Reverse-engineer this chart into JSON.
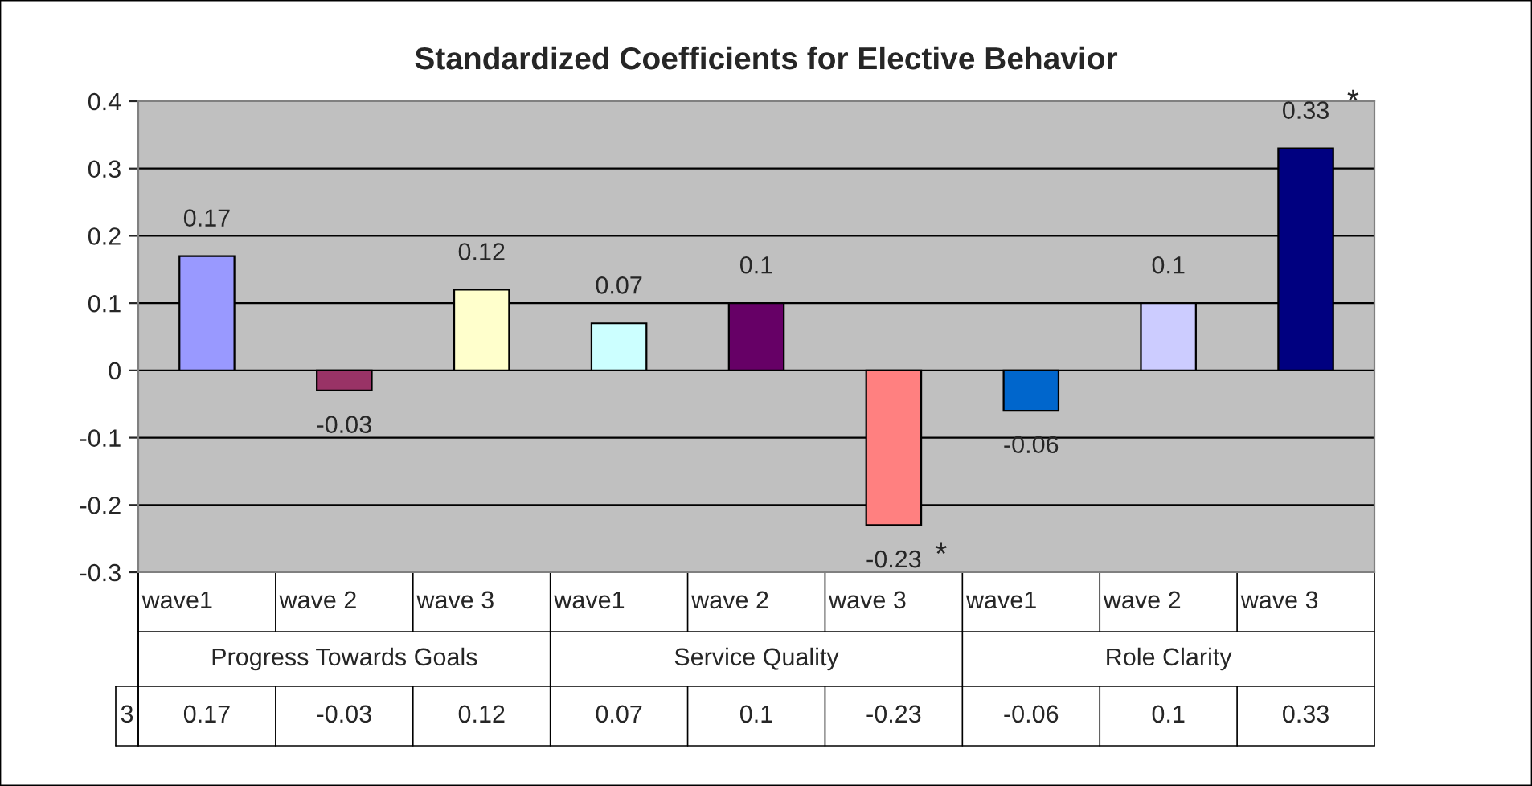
{
  "chart_data": {
    "type": "bar",
    "title": "Standardized Coefficients for Elective Behavior",
    "categories": [
      "wave1",
      "wave 2",
      "wave 3",
      "wave1",
      "wave 2",
      "wave 3",
      "wave1",
      "wave 2",
      "wave 3"
    ],
    "series": [
      {
        "name": "3",
        "colors": [
          "#9999ff",
          "#993366",
          "#ffffcc",
          "#ccffff",
          "#660066",
          "#ff8080",
          "#0066cc",
          "#ccccff",
          "#000080"
        ],
        "values": [
          0.17,
          -0.03,
          0.12,
          0.07,
          0.1,
          -0.23,
          -0.06,
          0.1,
          0.33
        ],
        "value_labels": [
          "0.17",
          "-0.03",
          "0.12",
          "0.07",
          "0.1",
          "-0.23",
          "-0.06",
          "0.1",
          "0.33"
        ]
      }
    ],
    "annotations": [
      "Progress Towards Goals",
      "Service Quality",
      "Role Clarity",
      "*",
      "*",
      "0.17",
      "-0.03",
      "0.12",
      "0.07",
      "0.1",
      "-0.23",
      "-0.06",
      "0.1",
      "0.33"
    ],
    "ylim": [
      -0.3,
      0.4
    ],
    "yticks": [
      -0.3,
      -0.2,
      -0.1,
      0,
      0.1,
      0.2,
      0.3,
      0.4
    ],
    "grid": "y",
    "legend": "bottom left"
  }
}
